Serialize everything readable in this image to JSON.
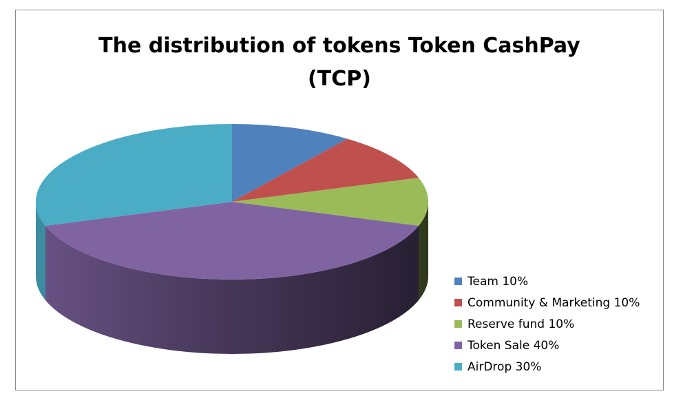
{
  "chart_data": {
    "type": "pie",
    "title_lines": [
      "The distribution of tokens Token CashPay",
      "(TCP)"
    ],
    "categories": [
      "Team",
      "Community & Marketing",
      "Reserve fund",
      "Token Sale",
      "AirDrop"
    ],
    "values": [
      10,
      10,
      10,
      40,
      30
    ],
    "unit": "%",
    "colors": [
      "#4F81BD",
      "#C0504D",
      "#9BBB59",
      "#8064A2",
      "#4BACC6"
    ],
    "legend_labels": [
      "Team 10%",
      "Community & Marketing 10%",
      "Reserve fund 10%",
      "Token Sale 40%",
      "AirDrop 30%"
    ],
    "legend_position": "bottom-right",
    "style": "3d"
  }
}
